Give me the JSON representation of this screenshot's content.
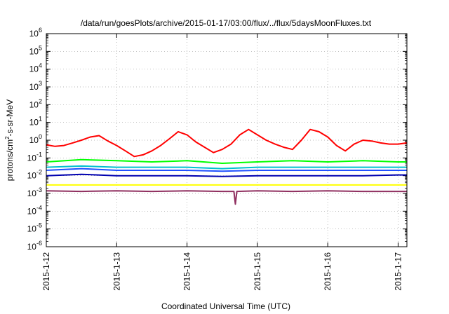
{
  "chart_data": {
    "type": "line",
    "title": "/data/run/goesPlots/archive/2015-01-17/03:00/flux/../flux/5daysMoonFluxes.txt",
    "xlabel": "Coordinated Universal Time (UTC)",
    "ylabel": {
      "base": "protons/cm",
      "sup": "2",
      "rest": "-s-sr-MeV"
    },
    "xlim": [
      "2015-01-12T00:00",
      "2015-01-17T03:00"
    ],
    "x_ticks": [
      "2015-1-12",
      "2015-1-13",
      "2015-1-14",
      "2015-1-15",
      "2015-1-16",
      "2015-1-17"
    ],
    "y_scale": "log",
    "ylim": [
      1e-06,
      1000000.0
    ],
    "y_ticks": [
      {
        "base": "10",
        "exp": "-6",
        "value": 1e-06
      },
      {
        "base": "10",
        "exp": "-5",
        "value": 1e-05
      },
      {
        "base": "10",
        "exp": "-4",
        "value": 0.0001
      },
      {
        "base": "10",
        "exp": "-3",
        "value": 0.001
      },
      {
        "base": "10",
        "exp": "-2",
        "value": 0.01
      },
      {
        "base": "10",
        "exp": "-1",
        "value": 0.1
      },
      {
        "base": "10",
        "exp": "0",
        "value": 1
      },
      {
        "base": "10",
        "exp": "1",
        "value": 10
      },
      {
        "base": "10",
        "exp": "2",
        "value": 100
      },
      {
        "base": "10",
        "exp": "3",
        "value": 1000
      },
      {
        "base": "10",
        "exp": "4",
        "value": 10000
      },
      {
        "base": "10",
        "exp": "5",
        "value": 100000
      },
      {
        "base": "10",
        "exp": "6",
        "value": 1000000
      }
    ],
    "grid": true,
    "legend": "none",
    "series": [
      {
        "color": "#ff0000",
        "x": [
          "2015-01-12T00:00",
          "2015-01-12T03:00",
          "2015-01-12T06:00",
          "2015-01-12T09:00",
          "2015-01-12T12:00",
          "2015-01-12T15:00",
          "2015-01-12T18:00",
          "2015-01-12T21:00",
          "2015-01-13T00:00",
          "2015-01-13T03:00",
          "2015-01-13T06:00",
          "2015-01-13T09:00",
          "2015-01-13T12:00",
          "2015-01-13T15:00",
          "2015-01-13T18:00",
          "2015-01-13T21:00",
          "2015-01-14T00:00",
          "2015-01-14T03:00",
          "2015-01-14T06:00",
          "2015-01-14T09:00",
          "2015-01-14T12:00",
          "2015-01-14T15:00",
          "2015-01-14T18:00",
          "2015-01-14T21:00",
          "2015-01-15T00:00",
          "2015-01-15T03:00",
          "2015-01-15T06:00",
          "2015-01-15T09:00",
          "2015-01-15T12:00",
          "2015-01-15T15:00",
          "2015-01-15T18:00",
          "2015-01-15T21:00",
          "2015-01-16T00:00",
          "2015-01-16T03:00",
          "2015-01-16T06:00",
          "2015-01-16T09:00",
          "2015-01-16T12:00",
          "2015-01-16T15:00",
          "2015-01-16T18:00",
          "2015-01-16T21:00",
          "2015-01-17T00:00",
          "2015-01-17T03:00"
        ],
        "y": [
          0.55,
          0.45,
          0.5,
          0.7,
          1.0,
          1.5,
          1.8,
          0.9,
          0.5,
          0.25,
          0.12,
          0.15,
          0.25,
          0.5,
          1.2,
          3.0,
          2.0,
          0.8,
          0.4,
          0.2,
          0.3,
          0.6,
          2.0,
          4.0,
          2.0,
          1.0,
          0.6,
          0.4,
          0.3,
          1.0,
          4.0,
          3.0,
          1.5,
          0.5,
          0.25,
          0.6,
          1.0,
          0.9,
          0.7,
          0.6,
          0.6,
          0.7
        ]
      },
      {
        "color": "#00ff00",
        "x": [
          "2015-01-12T00:00",
          "2015-01-12T12:00",
          "2015-01-13T00:00",
          "2015-01-13T12:00",
          "2015-01-14T00:00",
          "2015-01-14T12:00",
          "2015-01-15T00:00",
          "2015-01-15T12:00",
          "2015-01-16T00:00",
          "2015-01-16T12:00",
          "2015-01-17T00:00",
          "2015-01-17T03:00"
        ],
        "y": [
          0.06,
          0.08,
          0.07,
          0.06,
          0.07,
          0.05,
          0.06,
          0.07,
          0.06,
          0.07,
          0.06,
          0.06
        ]
      },
      {
        "color": "#00c0d0",
        "x": [
          "2015-01-12T00:00",
          "2015-01-12T12:00",
          "2015-01-13T00:00",
          "2015-01-13T12:00",
          "2015-01-14T00:00",
          "2015-01-14T12:00",
          "2015-01-15T00:00",
          "2015-01-15T12:00",
          "2015-01-16T00:00",
          "2015-01-16T12:00",
          "2015-01-17T00:00",
          "2015-01-17T03:00"
        ],
        "y": [
          0.03,
          0.035,
          0.03,
          0.03,
          0.03,
          0.025,
          0.03,
          0.03,
          0.03,
          0.03,
          0.03,
          0.03
        ]
      },
      {
        "color": "#2050ff",
        "x": [
          "2015-01-12T00:00",
          "2015-01-12T12:00",
          "2015-01-13T00:00",
          "2015-01-13T12:00",
          "2015-01-14T00:00",
          "2015-01-14T12:00",
          "2015-01-15T00:00",
          "2015-01-15T12:00",
          "2015-01-16T00:00",
          "2015-01-16T12:00",
          "2015-01-17T00:00",
          "2015-01-17T03:00"
        ],
        "y": [
          0.02,
          0.025,
          0.02,
          0.02,
          0.02,
          0.018,
          0.02,
          0.02,
          0.02,
          0.02,
          0.02,
          0.02
        ]
      },
      {
        "color": "#0000b0",
        "x": [
          "2015-01-12T00:00",
          "2015-01-12T12:00",
          "2015-01-13T00:00",
          "2015-01-13T12:00",
          "2015-01-14T00:00",
          "2015-01-14T12:00",
          "2015-01-15T00:00",
          "2015-01-15T12:00",
          "2015-01-16T00:00",
          "2015-01-16T12:00",
          "2015-01-17T00:00",
          "2015-01-17T03:00"
        ],
        "y": [
          0.01,
          0.012,
          0.01,
          0.01,
          0.01,
          0.009,
          0.01,
          0.01,
          0.01,
          0.01,
          0.011,
          0.011
        ]
      },
      {
        "color": "#ffff00",
        "x": [
          "2015-01-12T00:00",
          "2015-01-12T12:00",
          "2015-01-13T00:00",
          "2015-01-13T12:00",
          "2015-01-14T00:00",
          "2015-01-14T12:00",
          "2015-01-15T00:00",
          "2015-01-15T12:00",
          "2015-01-16T00:00",
          "2015-01-16T12:00",
          "2015-01-17T00:00",
          "2015-01-17T03:00"
        ],
        "y": [
          0.003,
          0.003,
          0.003,
          0.003,
          0.003,
          0.003,
          0.003,
          0.003,
          0.003,
          0.003,
          0.003,
          0.003
        ]
      },
      {
        "color": "#903060",
        "x": [
          "2015-01-12T00:00",
          "2015-01-12T12:00",
          "2015-01-13T00:00",
          "2015-01-13T12:00",
          "2015-01-14T00:00",
          "2015-01-14T12:00",
          "2015-01-14T16:00",
          "2015-01-14T16:30",
          "2015-01-14T17:00",
          "2015-01-15T00:00",
          "2015-01-15T12:00",
          "2015-01-16T00:00",
          "2015-01-16T12:00",
          "2015-01-17T00:00",
          "2015-01-17T03:00"
        ],
        "y": [
          0.0014,
          0.0013,
          0.0014,
          0.0013,
          0.0014,
          0.0013,
          0.0013,
          0.00025,
          0.0013,
          0.0014,
          0.0013,
          0.0014,
          0.0013,
          0.0013,
          0.0013
        ]
      }
    ]
  }
}
